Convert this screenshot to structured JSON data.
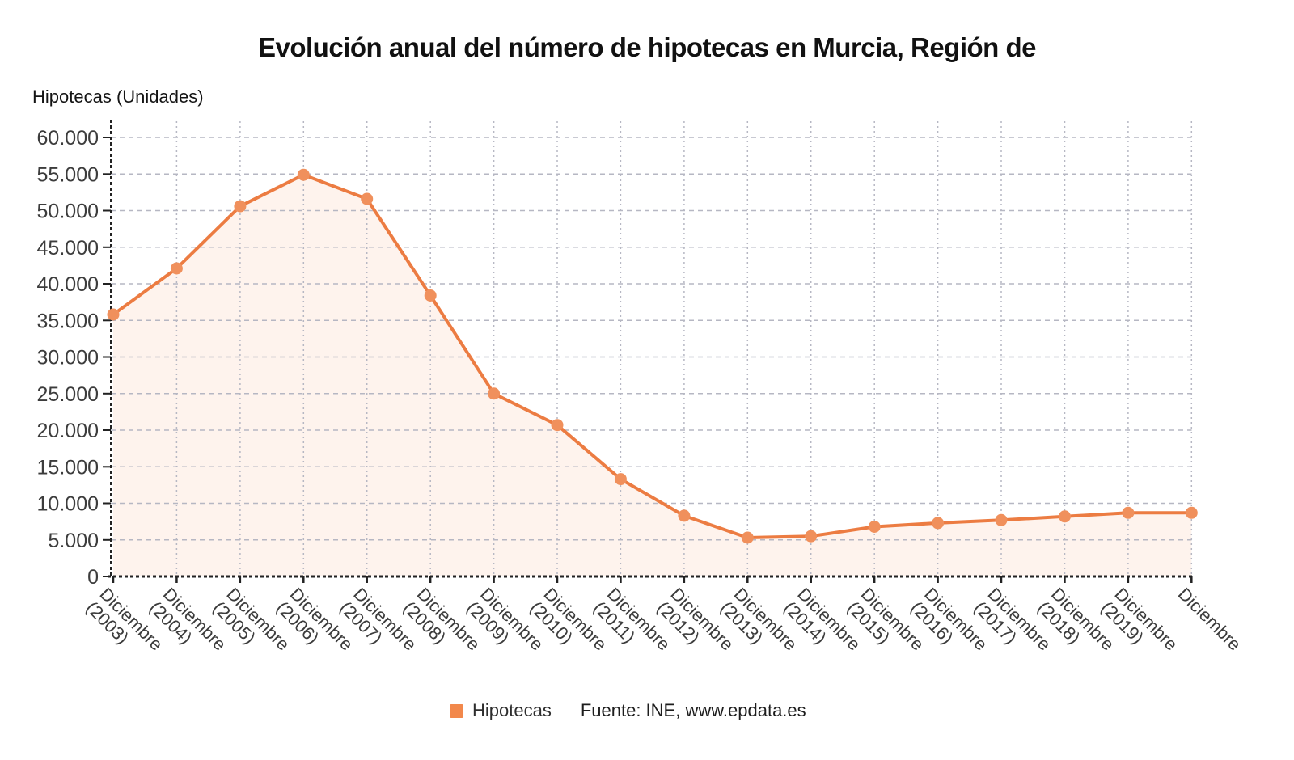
{
  "header": {
    "title": "Evolución anual del número de hipotecas en Murcia, Región de"
  },
  "chart": {
    "y_axis_title": "Hipotecas (Unidades)"
  },
  "legend": {
    "series_label": "Hipotecas",
    "source_label": "Fuente: INE, www.epdata.es",
    "marker_color": "#f2884b"
  },
  "chart_data": {
    "type": "line",
    "title": "Evolución anual del número de hipotecas en Murcia, Región de",
    "xlabel": "",
    "ylabel": "Hipotecas (Unidades)",
    "categories": [
      "Diciembre (2003)",
      "Diciembre (2004)",
      "Diciembre (2005)",
      "Diciembre (2006)",
      "Diciembre (2007)",
      "Diciembre (2008)",
      "Diciembre (2009)",
      "Diciembre (2010)",
      "Diciembre (2011)",
      "Diciembre (2012)",
      "Diciembre (2013)",
      "Diciembre (2014)",
      "Diciembre (2015)",
      "Diciembre (2016)",
      "Diciembre (2017)",
      "Diciembre (2018)",
      "Diciembre (2019)",
      "Diciembre"
    ],
    "x_tick_lines": [
      [
        "Diciembre",
        "(2003)"
      ],
      [
        "Diciembre",
        "(2004)"
      ],
      [
        "Diciembre",
        "(2005)"
      ],
      [
        "Diciembre",
        "(2006)"
      ],
      [
        "Diciembre",
        "(2007)"
      ],
      [
        "Diciembre",
        "(2008)"
      ],
      [
        "Diciembre",
        "(2009)"
      ],
      [
        "Diciembre",
        "(2010)"
      ],
      [
        "Diciembre",
        "(2011)"
      ],
      [
        "Diciembre",
        "(2012)"
      ],
      [
        "Diciembre",
        "(2013)"
      ],
      [
        "Diciembre",
        "(2014)"
      ],
      [
        "Diciembre",
        "(2015)"
      ],
      [
        "Diciembre",
        "(2016)"
      ],
      [
        "Diciembre",
        "(2017)"
      ],
      [
        "Diciembre",
        "(2018)"
      ],
      [
        "Diciembre",
        "(2019)"
      ],
      [
        "Diciembre"
      ]
    ],
    "series": [
      {
        "name": "Hipotecas",
        "values": [
          35800,
          42100,
          50600,
          54900,
          51600,
          38400,
          25000,
          20700,
          13300,
          8300,
          5300,
          5500,
          6800,
          7300,
          7700,
          8200,
          8700,
          8700
        ]
      }
    ],
    "ylim": [
      0,
      60000
    ],
    "y_tick_step": 5000,
    "y_tick_labels": [
      "0",
      "5.000",
      "10.000",
      "15.000",
      "20.000",
      "25.000",
      "30.000",
      "35.000",
      "40.000",
      "45.000",
      "50.000",
      "55.000",
      "60.000"
    ],
    "grid": true,
    "legend_position": "bottom",
    "colors": {
      "line": "#ec7c42",
      "marker": "#f0905c",
      "area_fill": "rgba(242,138,82,0.10)",
      "grid": "#b6b7c3",
      "axis": "#222222",
      "tick_label": "#3c3c3c"
    }
  }
}
